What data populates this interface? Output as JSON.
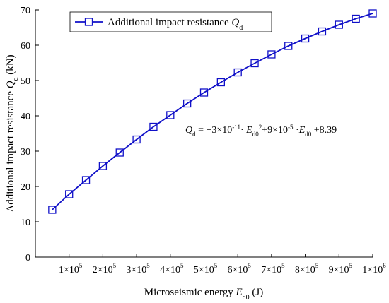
{
  "chart_data": {
    "type": "line",
    "xlabel": {
      "prefix": "Microseismic energy ",
      "var": "E",
      "sub": "d0",
      "suffix": " (J)"
    },
    "ylabel": {
      "prefix": "Additional impact resistance ",
      "var": "Q",
      "sub": "d",
      "suffix": " (kN)"
    },
    "xlim": [
      0,
      1000000
    ],
    "ylim": [
      0,
      70
    ],
    "yticks": [
      0,
      10,
      20,
      30,
      40,
      50,
      60,
      70
    ],
    "xticks": [
      {
        "value": 100000,
        "mant": "1×10",
        "exp": "5"
      },
      {
        "value": 200000,
        "mant": "2×10",
        "exp": "5"
      },
      {
        "value": 300000,
        "mant": "3×10",
        "exp": "5"
      },
      {
        "value": 400000,
        "mant": "4×10",
        "exp": "5"
      },
      {
        "value": 500000,
        "mant": "5×10",
        "exp": "5"
      },
      {
        "value": 600000,
        "mant": "6×10",
        "exp": "5"
      },
      {
        "value": 700000,
        "mant": "7×10",
        "exp": "5"
      },
      {
        "value": 800000,
        "mant": "8×10",
        "exp": "5"
      },
      {
        "value": 900000,
        "mant": "9×10",
        "exp": "5"
      },
      {
        "value": 1000000,
        "mant": "1×10",
        "exp": "6"
      }
    ],
    "series": [
      {
        "name": {
          "prefix": "Additional impact resistance ",
          "var": "Q",
          "sub": "d"
        },
        "color": "#1010c8",
        "marker": "square-open",
        "x": [
          50000,
          100000,
          150000,
          200000,
          250000,
          300000,
          350000,
          400000,
          450000,
          500000,
          550000,
          600000,
          650000,
          700000,
          750000,
          800000,
          850000,
          900000,
          950000,
          1000000
        ],
        "y": [
          13.4,
          17.8,
          21.8,
          25.8,
          29.6,
          33.3,
          36.9,
          40.2,
          43.5,
          46.6,
          49.5,
          52.3,
          54.9,
          57.4,
          59.8,
          61.9,
          63.9,
          65.8,
          67.5,
          69.0
        ]
      }
    ],
    "legend": "top-left",
    "grid": false,
    "annotation": {
      "q": "Q",
      "qsub": "d",
      "t1": " = −3×10",
      "e1": "-11",
      "t2": "· ",
      "v1": "E",
      "s1": "d0",
      "e2": "2",
      "t3": "+9×10",
      "e3": "-5",
      "t4": " ·",
      "v2": "E",
      "s2": "d0",
      "t5": " +8.39"
    }
  }
}
